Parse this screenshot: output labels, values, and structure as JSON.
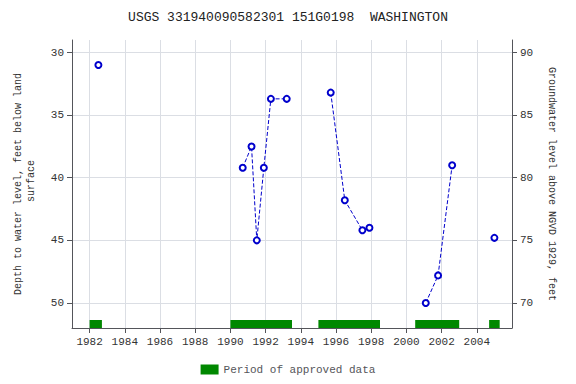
{
  "chart_data": {
    "type": "line",
    "title": "USGS 331940090582301 151G0198  WASHINGTON",
    "y_label": "Depth to water level, feet below land\n surface",
    "y2_label": "Groundwater level above NGVD 1929, feet",
    "x": [
      1982.5,
      null,
      1990.7,
      1991.2,
      1991.5,
      1991.9,
      1992.3,
      1993.2,
      null,
      1995.7,
      1996.5,
      1997.5,
      1997.9,
      null,
      2001.1,
      2001.8,
      2002.6,
      null,
      2005.0
    ],
    "values": [
      31.0,
      null,
      39.2,
      37.5,
      45.0,
      39.2,
      33.7,
      33.7,
      null,
      33.2,
      41.8,
      44.2,
      44.0,
      null,
      50.0,
      47.8,
      39.0,
      null,
      44.8
    ],
    "color": "#0000cc",
    "marker": "hollow circle",
    "line_style": "dashed",
    "xlim": [
      1981,
      2006
    ],
    "xticks": [
      1982,
      1984,
      1986,
      1988,
      1990,
      1992,
      1994,
      1996,
      1998,
      2000,
      2002,
      2004
    ],
    "ylim": [
      52,
      29
    ],
    "yticks": [
      30,
      35,
      40,
      45,
      50
    ],
    "y2lim": [
      68,
      91
    ],
    "y2ticks": [
      90,
      85,
      80,
      75,
      70
    ],
    "grid": true,
    "legend": "bottom",
    "spans": [
      {
        "name": "Period of approved data",
        "color": "#008800",
        "ranges": [
          [
            1982.0,
            1982.7
          ],
          [
            1990.0,
            1993.5
          ],
          [
            1995.0,
            1998.5
          ],
          [
            2000.5,
            2003.0
          ],
          [
            2004.7,
            2005.3
          ]
        ]
      }
    ]
  }
}
